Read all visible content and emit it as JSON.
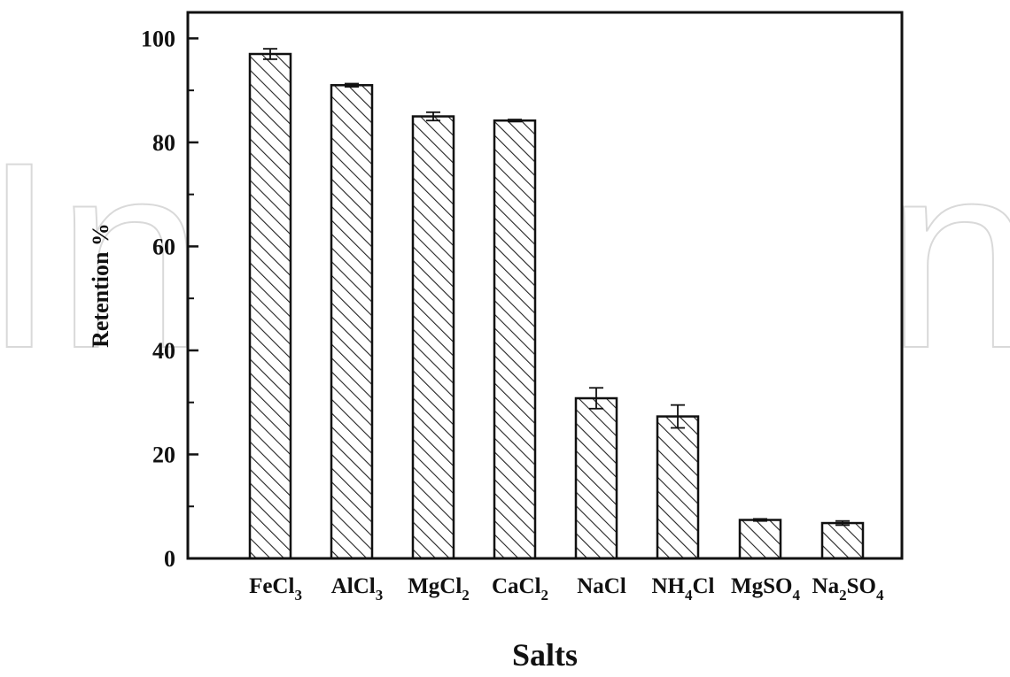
{
  "watermark": {
    "left_text": "In",
    "right_text": "n"
  },
  "chart_data": {
    "type": "bar",
    "categories": [
      {
        "base": "FeCl",
        "sub": "3",
        "tail": ""
      },
      {
        "base": "AlCl",
        "sub": "3",
        "tail": ""
      },
      {
        "base": "MgCl",
        "sub": "2",
        "tail": ""
      },
      {
        "base": "CaCl",
        "sub": "2",
        "tail": ""
      },
      {
        "base": "NaCl",
        "sub": "",
        "tail": ""
      },
      {
        "base": "NH",
        "sub": "4",
        "tail": "Cl"
      },
      {
        "base": "MgSO",
        "sub": "4",
        "tail": ""
      },
      {
        "base": "Na",
        "sub": "2",
        "tail": "SO",
        "sub2": "4"
      }
    ],
    "series": [
      {
        "values": [
          97.0,
          91.0,
          85.0,
          84.2,
          30.8,
          27.3,
          7.4,
          6.8
        ],
        "errors": [
          1.0,
          0.3,
          0.8,
          0.2,
          2.0,
          2.2,
          0.2,
          0.4
        ]
      }
    ],
    "xlabel": "Salts",
    "ylabel": "Retention %",
    "ylim": [
      0,
      100
    ],
    "yticks": [
      0,
      20,
      40,
      60,
      80,
      100
    ],
    "bar_pattern": "diagonal-hatch",
    "bar_fill": "#ffffff",
    "hatch_color": "#222222",
    "axis_color": "#111111",
    "grid": false,
    "legend": "none"
  }
}
